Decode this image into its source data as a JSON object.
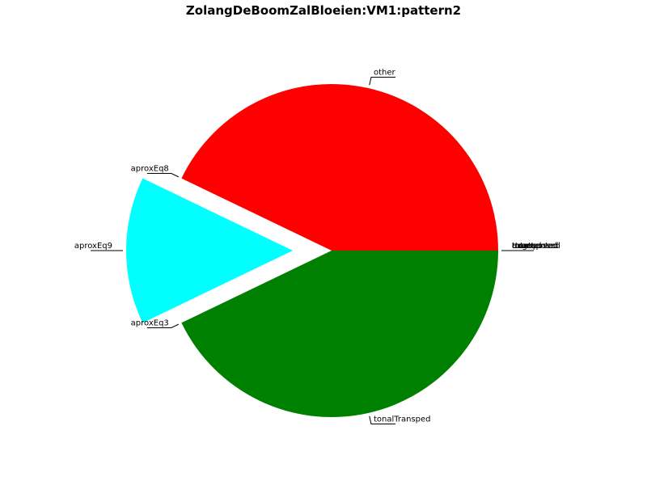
{
  "chart_data": {
    "type": "pie",
    "title": "ZolangDeBoomZalBloeien:VM1:pattern2",
    "slices": [
      {
        "label": "other",
        "value": 42.86,
        "color": "#ff0000"
      },
      {
        "label": "aproxEq8",
        "value": 0,
        "color": "#0000ff"
      },
      {
        "label": "aproxEq9",
        "value": 14.29,
        "color": "#00ffff"
      },
      {
        "label": "aproxEq3",
        "value": 0,
        "color": "#ff00ff"
      },
      {
        "label": "tonalTransped",
        "value": 42.86,
        "color": "#008000"
      },
      {
        "label": "ttransposed",
        "value": 0,
        "color": "#ffff00"
      },
      {
        "label": "rotated",
        "value": 0,
        "color": "#808080"
      },
      {
        "label": "augmented",
        "value": 0,
        "color": "#800000"
      },
      {
        "label": "exact",
        "value": 0,
        "color": "#000080"
      },
      {
        "label": "transposed",
        "value": 0,
        "color": "#800080"
      }
    ],
    "exploded": [
      "aproxEq9"
    ],
    "grid": false,
    "legend": "none"
  }
}
